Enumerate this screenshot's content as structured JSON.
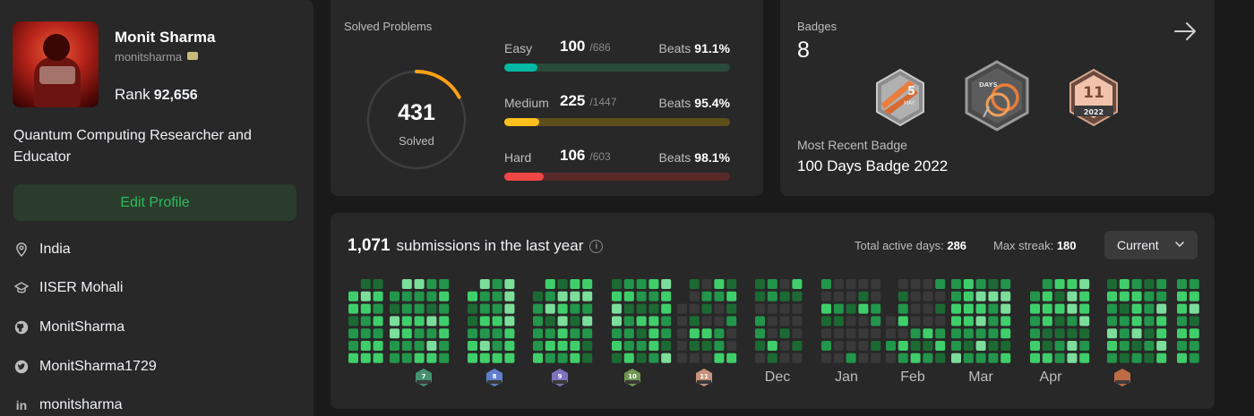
{
  "profile": {
    "name": "Monit Sharma",
    "username": "monitsharma",
    "rank_label": "Rank",
    "rank_value": "92,656",
    "bio": "Quantum Computing Researcher and Educator",
    "edit_button": "Edit Profile",
    "location": "India",
    "school": "IISER Mohali",
    "github": "MonitSharma",
    "twitter": "MonitSharma1729",
    "linkedin": "monitsharma"
  },
  "solved": {
    "title": "Solved Problems",
    "total": "431",
    "total_label": "Solved",
    "total_fraction": 0.172,
    "rows": [
      {
        "label": "Easy",
        "count": "100",
        "total": "/686",
        "beats_label": "Beats",
        "beats": "91.1%",
        "fraction": 0.146,
        "color": "#00b8a3",
        "track": "#2a4a3a"
      },
      {
        "label": "Medium",
        "count": "225",
        "total": "/1447",
        "beats_label": "Beats",
        "beats": "95.4%",
        "fraction": 0.155,
        "color": "#ffc01e",
        "track": "#5e4e1c"
      },
      {
        "label": "Hard",
        "count": "106",
        "total": "/603",
        "beats_label": "Beats",
        "beats": "98.1%",
        "fraction": 0.176,
        "color": "#ef4743",
        "track": "#5a2a29"
      }
    ]
  },
  "badges": {
    "title": "Badges",
    "count": "8",
    "recent_label": "Most Recent Badge",
    "recent_name": "100 Days Badge 2022",
    "items": [
      {
        "icon": "may-2022-badge-icon",
        "text": "5",
        "sub": "MAY"
      },
      {
        "icon": "100-days-badge-icon",
        "text": "DAYS",
        "sub": ""
      },
      {
        "icon": "nov-2022-badge-icon",
        "text": "11",
        "sub": "2022"
      }
    ]
  },
  "calendar": {
    "count": "1,071",
    "count_label": "submissions in the last year",
    "active_days_label": "Total active days:",
    "active_days": "286",
    "max_streak_label": "Max streak:",
    "max_streak": "180",
    "dropdown_value": "Current",
    "months": [
      {
        "label": "",
        "badge": "7",
        "badge_color": "#4aa37f"
      },
      {
        "label": "",
        "badge": "8",
        "badge_color": "#6a8ee6"
      },
      {
        "label": "",
        "badge": "9",
        "badge_color": "#8d7fd8"
      },
      {
        "label": "",
        "badge": "10",
        "badge_color": "#7faa5a"
      },
      {
        "label": "",
        "badge": "11",
        "badge_color": "#e3a48a"
      },
      {
        "label": "Dec",
        "badge": "",
        "badge_color": ""
      },
      {
        "label": "Jan",
        "badge": "",
        "badge_color": ""
      },
      {
        "label": "Feb",
        "badge": "",
        "badge_color": ""
      },
      {
        "label": "Mar",
        "badge": "",
        "badge_color": ""
      },
      {
        "label": "Apr",
        "badge": "",
        "badge_color": ""
      },
      {
        "label": "",
        "badge": "",
        "badge_color": "#d8774a"
      }
    ],
    "colors": {
      "empty": "#393939",
      "l1": "#1c6a33",
      "l2": "#22964a",
      "l3": "#3fcf6a",
      "l4": "#7bde9b"
    }
  }
}
